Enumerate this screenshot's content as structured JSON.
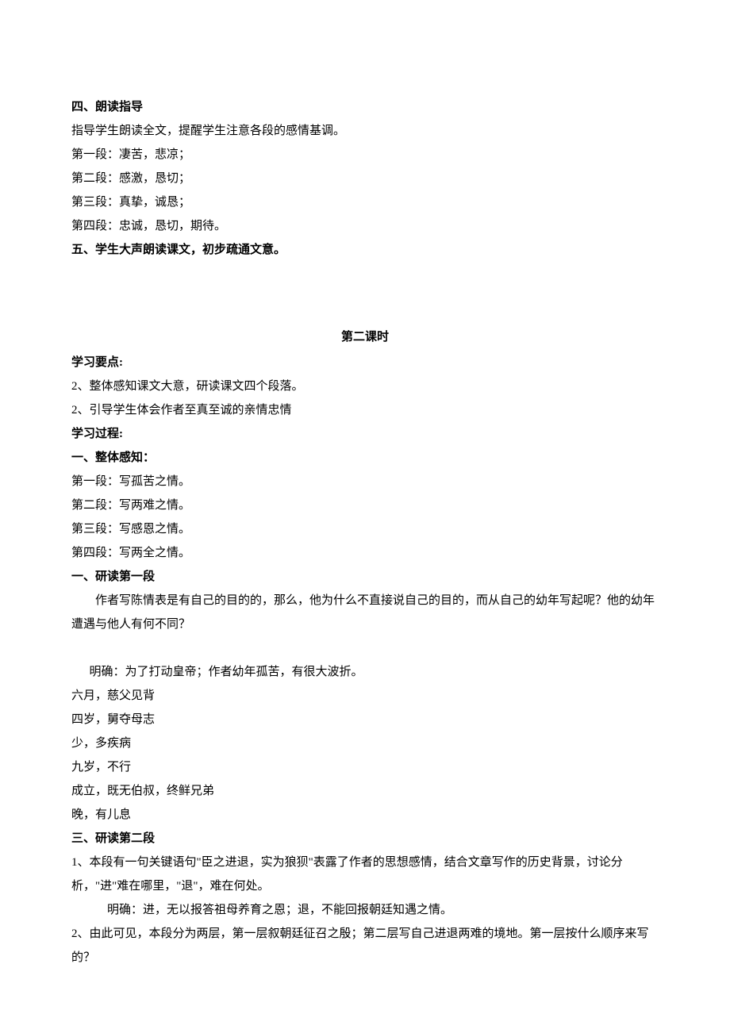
{
  "section4": {
    "title": "四、朗读指导",
    "intro": "指导学生朗读全文，提醒学生注意各段的感情基调。",
    "lines": [
      "第一段：凄苦，悲凉；",
      "第二段：感激，恳切；",
      "第三段：真挚，诚恳；",
      "第四段：忠诚，恳切，期待。"
    ]
  },
  "section5": {
    "title": "五、学生大声朗读课文，初步疏通文意。"
  },
  "lesson2": {
    "heading": "第二课时",
    "points_label": "学习要点:",
    "points": [
      "2、整体感知课文大意，研读课文四个段落。",
      "2、引导学生体会作者至真至诚的亲情忠情"
    ],
    "process_label": "学习过程:",
    "sec1": {
      "title": "一、整体感知：",
      "lines": [
        "第一段：写孤苦之情。",
        "第二段：写两难之情。",
        "第三段：写感恩之情。",
        "第四段：写两全之情。"
      ]
    },
    "sec2": {
      "title": "一、研读第一段",
      "q": "作者写陈情表是有自己的目的的，那么，他为什么不直接说自己的目的，而从自己的幼年写起呢？他的幼年遭遇与他人有何不同？",
      "a_label": "明确：为了打动皇帝；作者幼年孤苦，有很大波折。",
      "items": [
        "六月，慈父见背",
        "四岁，舅夺母志",
        "少，多疾病",
        "九岁，不行",
        "成立，既无伯叔，终鲜兄弟",
        "晚，有儿息"
      ]
    },
    "sec3": {
      "title": "三、研读第二段",
      "q1": "1、本段有一句关键语句\"臣之进退，实为狼狈\"表露了作者的思想感情，结合文章写作的历史背景，讨论分析，\"进\"难在哪里，\"退\"，难在何处。",
      "a1": "明确：进，无以报答祖母养育之恩；退，不能回报朝廷知遇之情。",
      "q2": "2、由此可见，本段分为两层，第一层叙朝廷征召之殷；第二层写自己进退两难的境地。第一层按什么顺序来写的？"
    }
  }
}
